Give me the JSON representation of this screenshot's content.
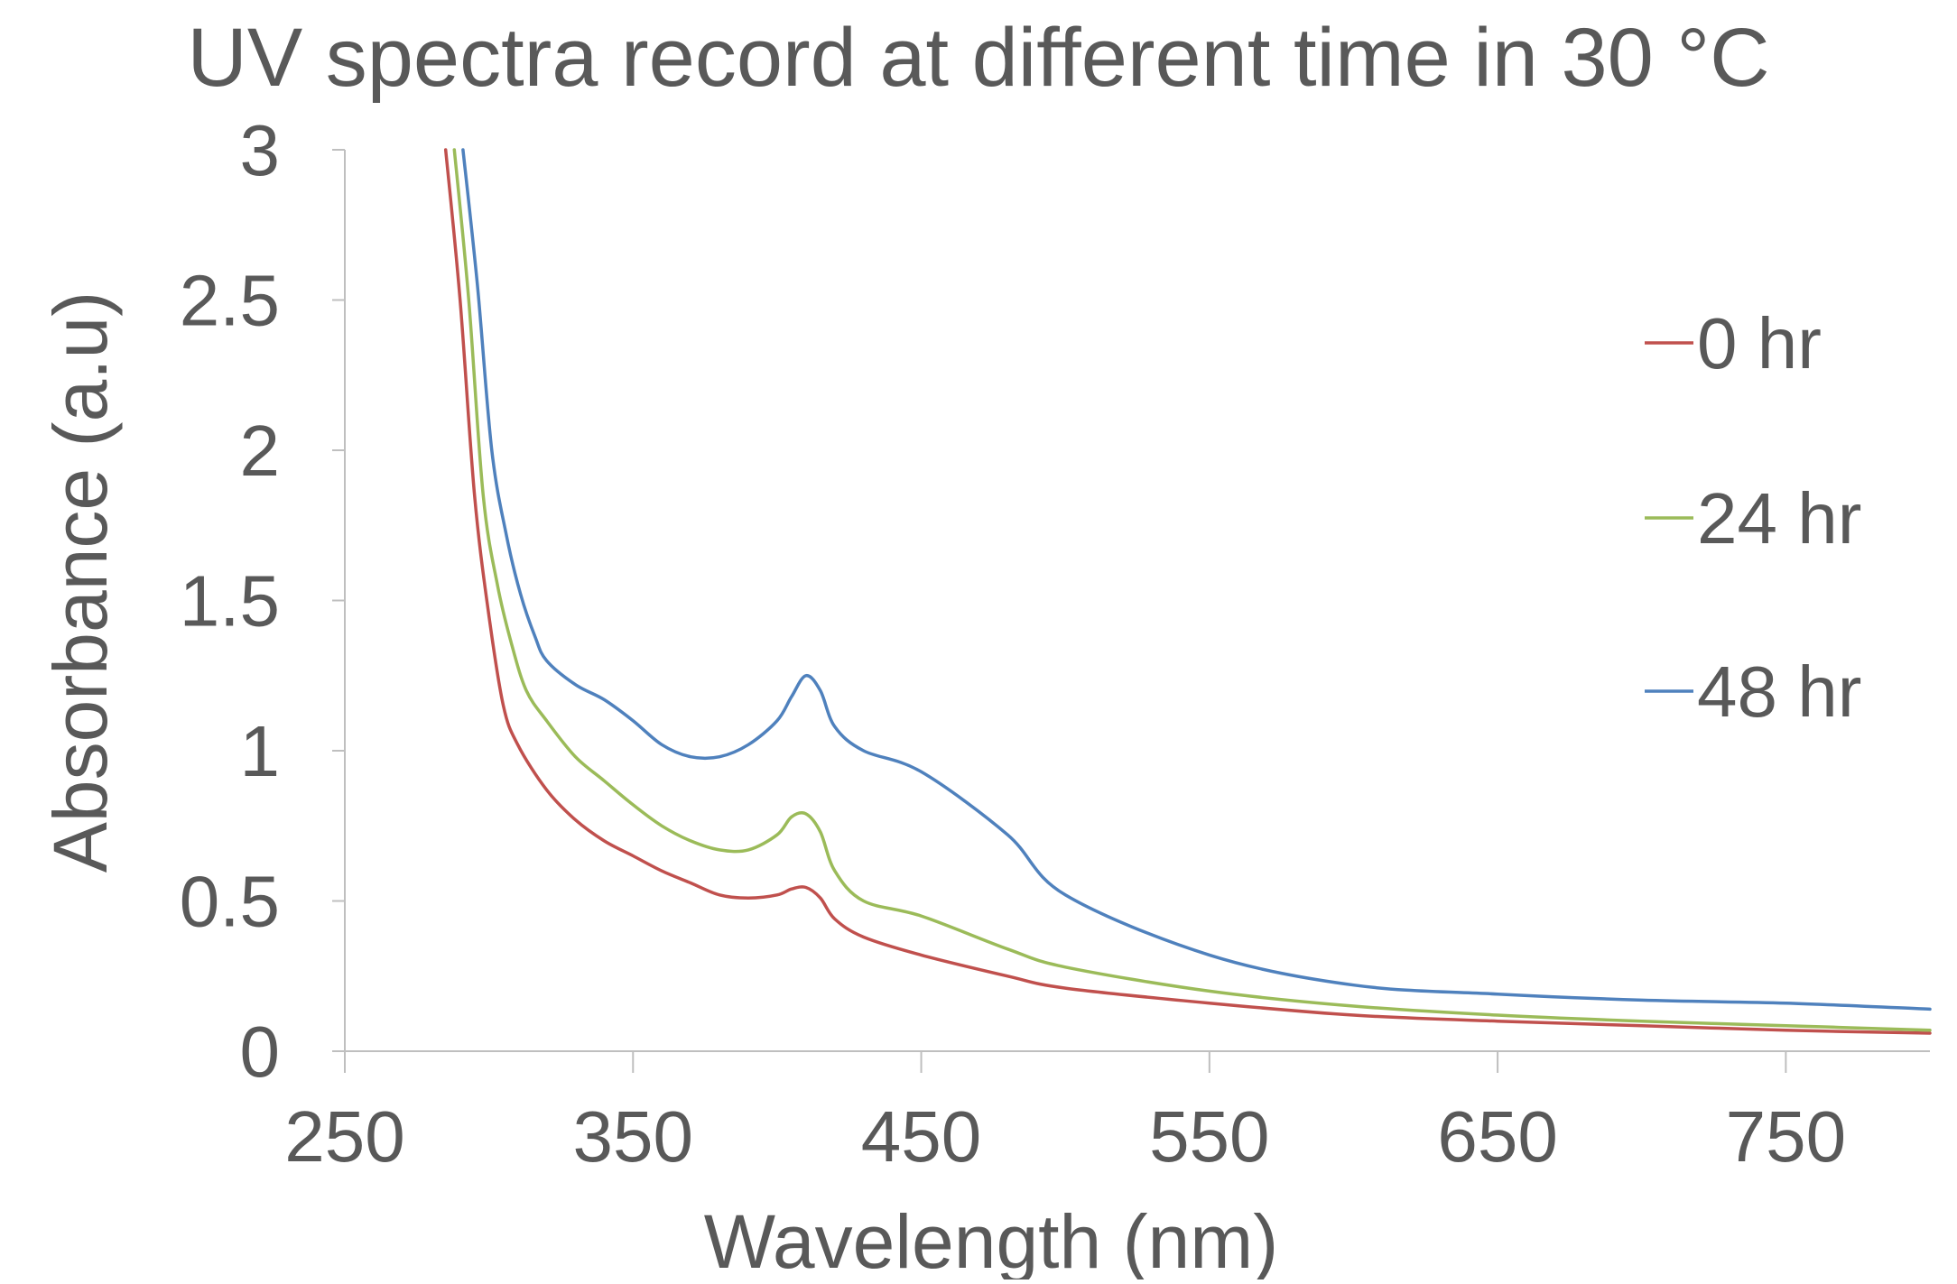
{
  "chart_data": {
    "type": "line",
    "title": "UV spectra record at different time in 30 °C",
    "xlabel": "Wavelength (nm)",
    "ylabel": "Absorbance (a.u)",
    "xlim": [
      250,
      800
    ],
    "ylim": [
      0,
      3
    ],
    "x_ticks": [
      250,
      350,
      450,
      550,
      650,
      750
    ],
    "x_tick_labels": [
      "250",
      "350",
      "450",
      "550",
      "650",
      "750"
    ],
    "y_ticks": [
      0,
      0.5,
      1,
      1.5,
      2,
      2.5,
      3
    ],
    "y_tick_labels": [
      "0",
      "0.5",
      "1",
      "1.5",
      "2",
      "2.5",
      "3"
    ],
    "grid": false,
    "legend_position": "right",
    "series": [
      {
        "name": "0 hr",
        "color": "#c0504d",
        "x": [
          285,
          290,
          295,
          300,
          305,
          310,
          320,
          330,
          340,
          350,
          360,
          370,
          380,
          390,
          400,
          405,
          410,
          415,
          420,
          430,
          450,
          480,
          500,
          550,
          600,
          650,
          700,
          750,
          800
        ],
        "y": [
          3.0,
          2.5,
          1.85,
          1.45,
          1.15,
          1.02,
          0.87,
          0.77,
          0.7,
          0.65,
          0.6,
          0.56,
          0.52,
          0.51,
          0.52,
          0.54,
          0.545,
          0.51,
          0.44,
          0.38,
          0.32,
          0.25,
          0.21,
          0.16,
          0.12,
          0.1,
          0.085,
          0.07,
          0.06
        ]
      },
      {
        "name": "24 hr",
        "color": "#9bbb59",
        "x": [
          288,
          293,
          298,
          303,
          308,
          313,
          320,
          330,
          340,
          350,
          360,
          370,
          380,
          390,
          400,
          405,
          410,
          415,
          420,
          430,
          450,
          480,
          500,
          550,
          600,
          650,
          700,
          750,
          800
        ],
        "y": [
          3.0,
          2.5,
          1.85,
          1.55,
          1.35,
          1.2,
          1.1,
          0.98,
          0.9,
          0.82,
          0.75,
          0.7,
          0.67,
          0.67,
          0.72,
          0.78,
          0.79,
          0.73,
          0.6,
          0.5,
          0.45,
          0.34,
          0.28,
          0.2,
          0.15,
          0.12,
          0.1,
          0.085,
          0.07
        ]
      },
      {
        "name": "48 hr",
        "color": "#4f81bd",
        "x": [
          291,
          296,
          301,
          306,
          311,
          316,
          320,
          330,
          340,
          350,
          360,
          370,
          380,
          390,
          400,
          405,
          410,
          415,
          420,
          430,
          450,
          480,
          500,
          550,
          600,
          650,
          700,
          750,
          800
        ],
        "y": [
          3.0,
          2.55,
          2.0,
          1.72,
          1.52,
          1.38,
          1.3,
          1.22,
          1.17,
          1.1,
          1.02,
          0.98,
          0.98,
          1.02,
          1.1,
          1.18,
          1.25,
          1.2,
          1.08,
          1.0,
          0.93,
          0.72,
          0.52,
          0.32,
          0.22,
          0.19,
          0.17,
          0.16,
          0.14
        ]
      }
    ]
  }
}
